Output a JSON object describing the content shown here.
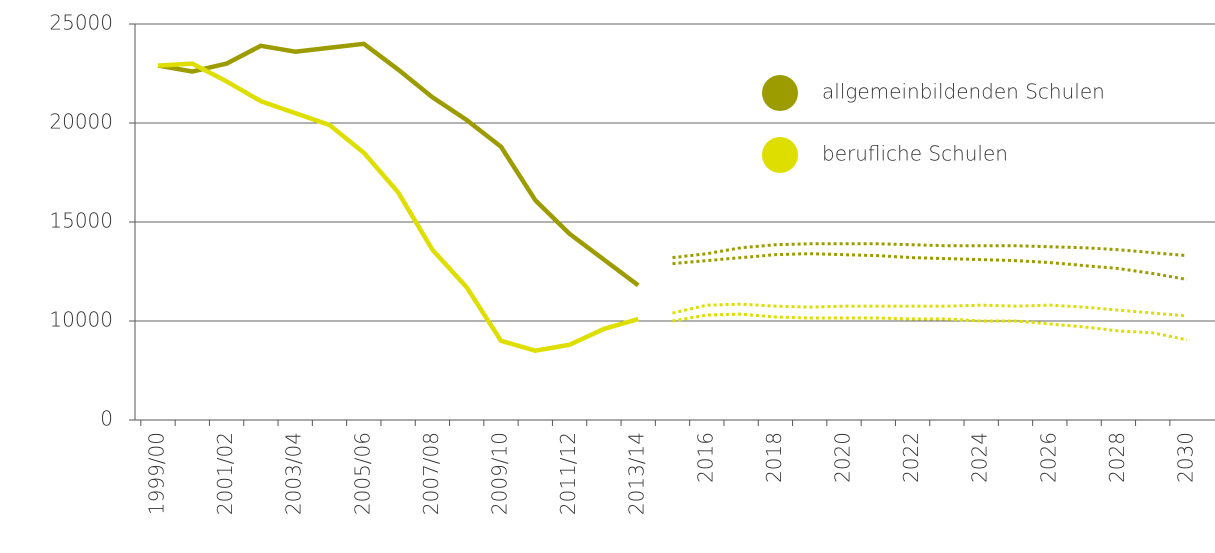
{
  "chart_data": {
    "type": "line",
    "categories": [
      "1999/00",
      null,
      "2001/02",
      null,
      "2003/04",
      null,
      "2005/06",
      null,
      "2007/08",
      null,
      "2009/10",
      null,
      "2011/12",
      null,
      "2013/14",
      null,
      "2016",
      null,
      "2018",
      null,
      "2020",
      null,
      "2022",
      null,
      "2024",
      null,
      "2026",
      null,
      "2028",
      null,
      "2030"
    ],
    "series": [
      {
        "name": "allgemeinbildenden Schulen",
        "color": "#9c9c00",
        "values": [
          22900,
          22600,
          23000,
          23900,
          23600,
          23800,
          24000,
          22700,
          21300,
          20150,
          18800,
          16100,
          14400,
          13100,
          11800,
          null,
          null,
          null,
          null,
          null,
          null,
          null,
          null,
          null,
          null,
          null,
          null,
          null,
          null,
          null,
          null
        ]
      },
      {
        "name": "berufliche Schulen",
        "color": "#dede00",
        "values": [
          22900,
          23000,
          22100,
          21100,
          20500,
          19900,
          18500,
          16500,
          13600,
          11700,
          9000,
          8500,
          8800,
          9600,
          10100,
          null,
          null,
          null,
          null,
          null,
          null,
          null,
          null,
          null,
          null,
          null,
          null,
          null,
          null,
          null,
          null
        ]
      },
      {
        "color": "#9c9c00",
        "dashed": true,
        "values": [
          null,
          null,
          null,
          null,
          null,
          null,
          null,
          null,
          null,
          null,
          null,
          null,
          null,
          null,
          null,
          13200,
          13400,
          13700,
          13850,
          13900,
          13900,
          13900,
          13850,
          13800,
          13800,
          13800,
          13750,
          13700,
          13600,
          13450,
          13300
        ]
      },
      {
        "color": "#9c9c00",
        "dashed": true,
        "values": [
          null,
          null,
          null,
          null,
          null,
          null,
          null,
          null,
          null,
          null,
          null,
          null,
          null,
          null,
          null,
          12900,
          13050,
          13200,
          13350,
          13400,
          13350,
          13300,
          13200,
          13150,
          13100,
          13050,
          12950,
          12800,
          12650,
          12400,
          12100
        ]
      },
      {
        "color": "#dede00",
        "dashed": true,
        "values": [
          null,
          null,
          null,
          null,
          null,
          null,
          null,
          null,
          null,
          null,
          null,
          null,
          null,
          null,
          null,
          10400,
          10800,
          10850,
          10750,
          10700,
          10750,
          10750,
          10750,
          10750,
          10800,
          10750,
          10800,
          10700,
          10550,
          10400,
          10250
        ]
      },
      {
        "color": "#dede00",
        "dashed": true,
        "values": [
          null,
          null,
          null,
          null,
          null,
          null,
          null,
          null,
          null,
          null,
          null,
          null,
          null,
          null,
          null,
          10000,
          10300,
          10350,
          10200,
          10150,
          10150,
          10150,
          10100,
          10100,
          10000,
          10000,
          9850,
          9700,
          9500,
          9400,
          9050
        ]
      }
    ],
    "ylim": [
      5000,
      25000
    ],
    "yticks": [
      {
        "value": 5000,
        "label": "0"
      },
      10000,
      15000,
      20000,
      25000
    ],
    "grid": true,
    "legend": "upper right"
  }
}
